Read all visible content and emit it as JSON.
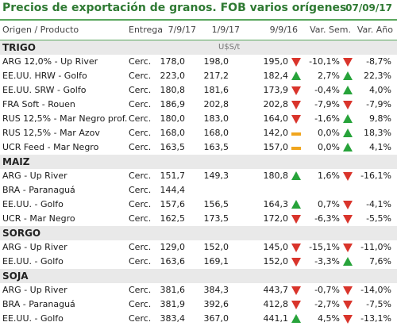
{
  "header": {
    "title": "Precios de exportación de granos. FOB varios orígenes",
    "date": "07/09/17"
  },
  "columns": {
    "origin": "Origen / Producto",
    "delivery": "Entrega",
    "d1": "7/9/17",
    "d2": "1/9/17",
    "d3": "9/9/16",
    "week": "Var. Sem.",
    "year": "Var. Año"
  },
  "unit": "U$S/t",
  "colors": {
    "accent": "#2f7a33",
    "up": "#27a33a",
    "down": "#d9342b",
    "flat": "#f0a51d",
    "section_bg": "#e9e9e9"
  },
  "sections": [
    {
      "name": "TRIGO",
      "rows": [
        {
          "origin": "ARG 12,0% - Up River",
          "delivery": "Cerc.",
          "d1": "178,0",
          "d2": "198,0",
          "d3": "195,0",
          "week": "-10,1%",
          "year": "-8,7%",
          "week_dir": "down",
          "year_dir": "down"
        },
        {
          "origin": "EE.UU. HRW - Golfo",
          "delivery": "Cerc.",
          "d1": "223,0",
          "d2": "217,2",
          "d3": "182,4",
          "week": "2,7%",
          "year": "22,3%",
          "week_dir": "up",
          "year_dir": "up"
        },
        {
          "origin": "EE.UU. SRW - Golfo",
          "delivery": "Cerc.",
          "d1": "180,8",
          "d2": "181,6",
          "d3": "173,9",
          "week": "-0,4%",
          "year": "4,0%",
          "week_dir": "down",
          "year_dir": "up"
        },
        {
          "origin": "FRA Soft - Rouen",
          "delivery": "Cerc.",
          "d1": "186,9",
          "d2": "202,8",
          "d3": "202,8",
          "week": "-7,9%",
          "year": "-7,9%",
          "week_dir": "down",
          "year_dir": "down"
        },
        {
          "origin": "RUS 12,5% - Mar Negro prof.",
          "delivery": "Cerc.",
          "d1": "180,0",
          "d2": "183,0",
          "d3": "164,0",
          "week": "-1,6%",
          "year": "9,8%",
          "week_dir": "down",
          "year_dir": "up"
        },
        {
          "origin": "RUS 12,5% - Mar Azov",
          "delivery": "Cerc.",
          "d1": "168,0",
          "d2": "168,0",
          "d3": "142,0",
          "week": "0,0%",
          "year": "18,3%",
          "week_dir": "flat",
          "year_dir": "up"
        },
        {
          "origin": "UCR Feed - Mar Negro",
          "delivery": "Cerc.",
          "d1": "163,5",
          "d2": "163,5",
          "d3": "157,0",
          "week": "0,0%",
          "year": "4,1%",
          "week_dir": "flat",
          "year_dir": "up"
        }
      ]
    },
    {
      "name": "MAIZ",
      "rows": [
        {
          "origin": "ARG - Up River",
          "delivery": "Cerc.",
          "d1": "151,7",
          "d2": "149,3",
          "d3": "180,8",
          "week": "1,6%",
          "year": "-16,1%",
          "week_dir": "up",
          "year_dir": "down"
        },
        {
          "origin": "BRA - Paranaguá",
          "delivery": "Cerc.",
          "d1": "144,4",
          "d2": "",
          "d3": "",
          "week": "",
          "year": "",
          "week_dir": "",
          "year_dir": ""
        },
        {
          "origin": "EE.UU. - Golfo",
          "delivery": "Cerc.",
          "d1": "157,6",
          "d2": "156,5",
          "d3": "164,3",
          "week": "0,7%",
          "year": "-4,1%",
          "week_dir": "up",
          "year_dir": "down"
        },
        {
          "origin": "UCR - Mar Negro",
          "delivery": "Cerc.",
          "d1": "162,5",
          "d2": "173,5",
          "d3": "172,0",
          "week": "-6,3%",
          "year": "-5,5%",
          "week_dir": "down",
          "year_dir": "down"
        }
      ]
    },
    {
      "name": "SORGO",
      "rows": [
        {
          "origin": "ARG - Up River",
          "delivery": "Cerc.",
          "d1": "129,0",
          "d2": "152,0",
          "d3": "145,0",
          "week": "-15,1%",
          "year": "-11,0%",
          "week_dir": "down",
          "year_dir": "down"
        },
        {
          "origin": "EE.UU. - Golfo",
          "delivery": "Cerc.",
          "d1": "163,6",
          "d2": "169,1",
          "d3": "152,0",
          "week": "-3,3%",
          "year": "7,6%",
          "week_dir": "down",
          "year_dir": "up"
        }
      ]
    },
    {
      "name": "SOJA",
      "rows": [
        {
          "origin": "ARG - Up River",
          "delivery": "Cerc.",
          "d1": "381,6",
          "d2": "384,3",
          "d3": "443,7",
          "week": "-0,7%",
          "year": "-14,0%",
          "week_dir": "down",
          "year_dir": "down"
        },
        {
          "origin": "BRA - Paranaguá",
          "delivery": "Cerc.",
          "d1": "381,9",
          "d2": "392,6",
          "d3": "412,8",
          "week": "-2,7%",
          "year": "-7,5%",
          "week_dir": "down",
          "year_dir": "down"
        },
        {
          "origin": "EE.UU. - Golfo",
          "delivery": "Cerc.",
          "d1": "383,4",
          "d2": "367,0",
          "d3": "441,1",
          "week": "4,5%",
          "year": "-13,1%",
          "week_dir": "up",
          "year_dir": "down"
        }
      ]
    }
  ]
}
